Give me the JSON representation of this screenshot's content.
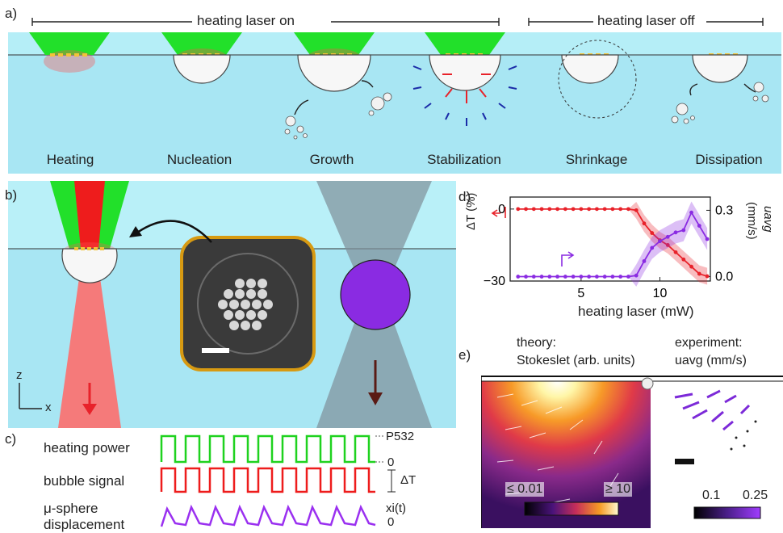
{
  "panel_a": {
    "label": "a)",
    "laser_on": "heating laser on",
    "laser_off": "heating laser off",
    "stages": [
      "Heating",
      "Nucleation",
      "Growth",
      "Stabilization",
      "Shrinkage",
      "Dissipation"
    ]
  },
  "panel_b": {
    "label": "b)",
    "axis_z": "z",
    "axis_x": "x"
  },
  "panel_c": {
    "label": "c)",
    "traces": [
      {
        "name": "heating power",
        "high": "P532",
        "low": "0",
        "color": "#1fd21f"
      },
      {
        "name": "bubble signal",
        "delta": "ΔT",
        "color": "#ee1c1c"
      },
      {
        "name": "μ-sphere",
        "name2": "displacement",
        "high": "xi(t)",
        "low": "0",
        "color": "#9a30f0"
      }
    ]
  },
  "panel_d": {
    "label": "d)",
    "ylabel_left": "ΔT (%)",
    "ylabel_right": "uavg",
    "ylabel_right_units": "(mm/s)",
    "xlabel": "heating laser (mW)"
  },
  "panel_e": {
    "label": "e)",
    "theory_title": "theory:",
    "theory_subtitle": "Stokeslet (arb. units)",
    "exp_title": "experiment:",
    "exp_subtitle": "uavg (mm/s)",
    "cb_left_min": "≤ 0.01",
    "cb_left_max": "≥ 10",
    "cb_right_min": "0.1",
    "cb_right_max": "0.25"
  },
  "chart_data": {
    "type": "line",
    "xlabel": "heating laser (mW)",
    "ylabel": "ΔT (%)",
    "y2label": "uavg (mm/s)",
    "xlim": [
      0.5,
      13.2
    ],
    "ylim": [
      -30,
      5
    ],
    "y2lim": [
      -0.02,
      0.36
    ],
    "xticks": [
      5,
      10
    ],
    "yticks": [
      0,
      -30
    ],
    "y2ticks": [
      0.3,
      0.0
    ],
    "x": [
      1,
      1.5,
      2,
      2.5,
      3,
      3.5,
      4,
      4.5,
      5,
      5.5,
      6,
      6.5,
      7,
      7.5,
      8,
      8.5,
      9,
      9.5,
      10,
      10.5,
      11,
      11.5,
      12,
      12.5,
      13
    ],
    "series": [
      {
        "axis": "left",
        "color": "#e8222a",
        "values": [
          0,
          0,
          0,
          0,
          0,
          0,
          0,
          0,
          0,
          0,
          0,
          0,
          0,
          0,
          0,
          -0.5,
          -6,
          -10,
          -13,
          -15,
          -18,
          -21,
          -24,
          -27,
          -28
        ]
      },
      {
        "axis": "right",
        "color": "#8a2be2",
        "values": [
          0,
          0,
          0,
          0,
          0,
          0,
          0,
          0,
          0,
          0,
          0,
          0,
          0,
          0,
          0,
          0.005,
          0.07,
          0.13,
          0.16,
          0.18,
          0.2,
          0.21,
          0.29,
          0.23,
          0.17
        ]
      }
    ]
  }
}
